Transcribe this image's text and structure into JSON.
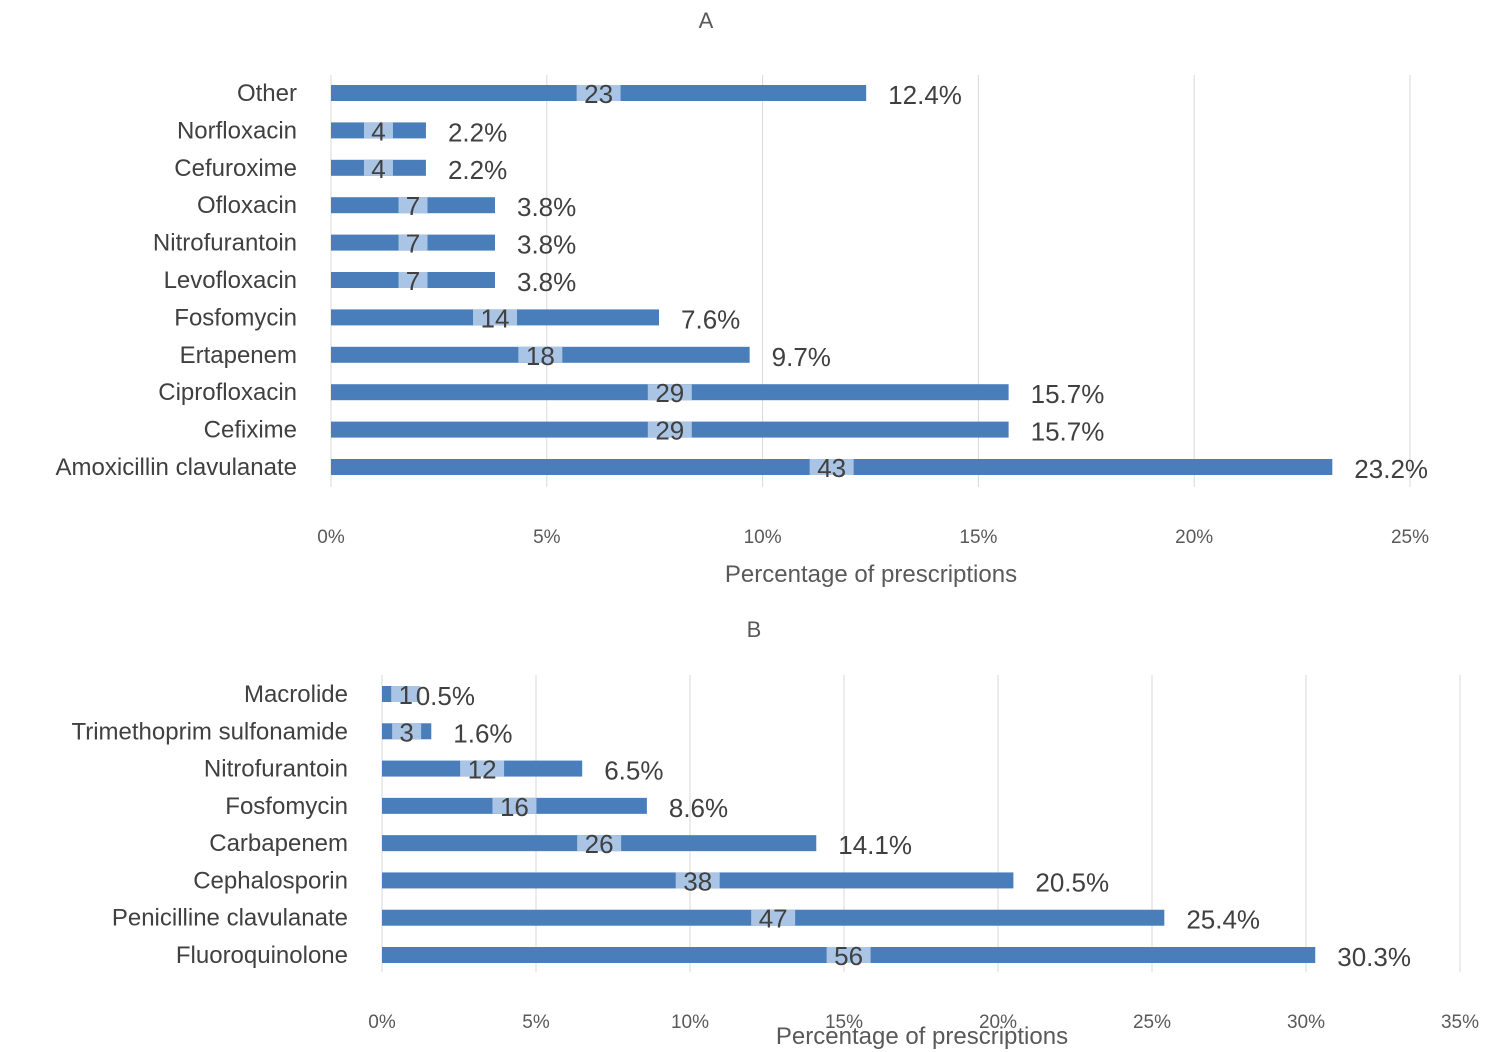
{
  "chart_data": [
    {
      "type": "bar",
      "orientation": "horizontal",
      "title": "A",
      "xlabel": "Percentage of prescriptions",
      "ylabel": "",
      "xlim": [
        0,
        25
      ],
      "x_ticks": [
        "0%",
        "5%",
        "10%",
        "15%",
        "20%",
        "25%"
      ],
      "grid": true,
      "bar_color": "#4a7ebb",
      "count_label_bg": "#a9c4e4",
      "categories": [
        "Other",
        "Norfloxacin",
        "Cefuroxime",
        "Ofloxacin",
        "Nitrofurantoin",
        "Levofloxacin",
        "Fosfomycin",
        "Ertapenem",
        "Ciprofloxacin",
        "Cefixime",
        "Amoxicillin clavulanate"
      ],
      "values": [
        12.4,
        2.2,
        2.2,
        3.8,
        3.8,
        3.8,
        7.6,
        9.7,
        15.7,
        15.7,
        23.2
      ],
      "value_labels": [
        "12.4%",
        "2.2%",
        "2.2%",
        "3.8%",
        "3.8%",
        "3.8%",
        "7.6%",
        "9.7%",
        "15.7%",
        "15.7%",
        "23.2%"
      ],
      "counts": [
        23,
        4,
        4,
        7,
        7,
        7,
        14,
        18,
        29,
        29,
        43
      ]
    },
    {
      "type": "bar",
      "orientation": "horizontal",
      "title": "B",
      "xlabel": "Percentage of prescriptions",
      "ylabel": "",
      "xlim": [
        0,
        35
      ],
      "x_ticks": [
        "0%",
        "5%",
        "10%",
        "15%",
        "20%",
        "25%",
        "30%",
        "35%"
      ],
      "grid": true,
      "bar_color": "#4a7ebb",
      "count_label_bg": "#a9c4e4",
      "categories": [
        "Macrolide",
        "Trimethoprim sulfonamide",
        "Nitrofurantoin",
        "Fosfomycin",
        "Carbapenem",
        "Cephalosporin",
        "Penicilline clavulanate",
        "Fluoroquinolone"
      ],
      "values": [
        0.5,
        1.6,
        6.5,
        8.6,
        14.1,
        20.5,
        25.4,
        30.3
      ],
      "value_labels": [
        "0.5%",
        "1.6%",
        "6.5%",
        "8.6%",
        "14.1%",
        "20.5%",
        "25.4%",
        "30.3%"
      ],
      "counts": [
        1,
        3,
        12,
        16,
        26,
        38,
        47,
        56
      ]
    }
  ]
}
